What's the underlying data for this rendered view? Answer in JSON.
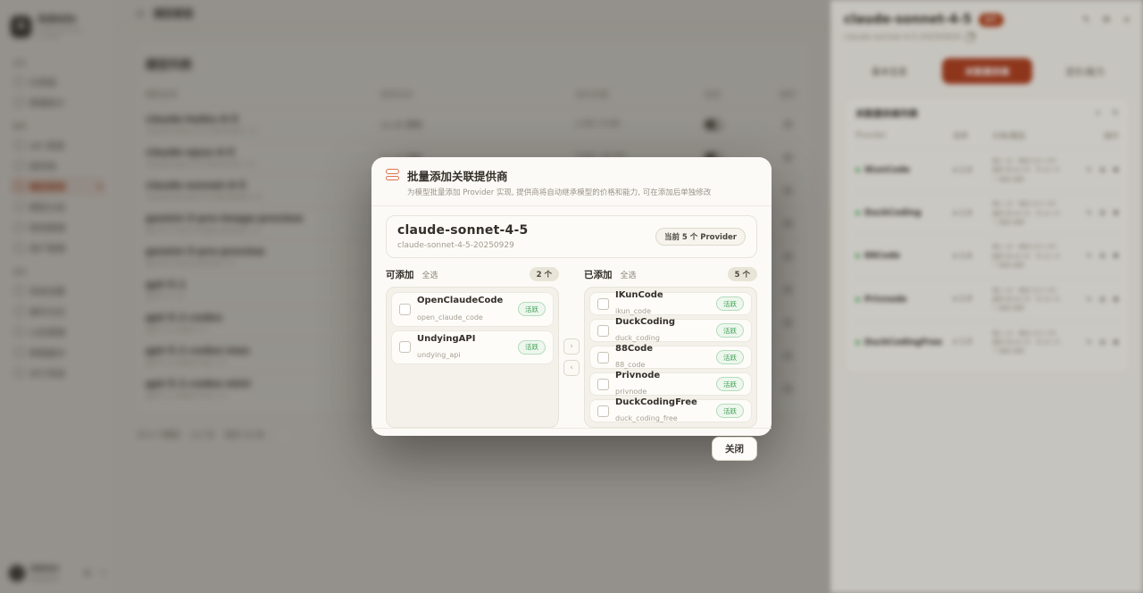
{
  "sidebar": {
    "brand": {
      "logo_letter": "A",
      "name": "Admin",
      "tagline": "model gateway console"
    },
    "sections": [
      {
        "label": "总览",
        "items": [
          {
            "label": "仪表盘"
          },
          {
            "label": "数据统计"
          }
        ]
      },
      {
        "label": "管理",
        "items": [
          {
            "label": "API 渠道"
          },
          {
            "label": "提供商"
          },
          {
            "label": "模型管理"
          },
          {
            "label": "模型分组"
          },
          {
            "label": "密钥管理"
          },
          {
            "label": "用户管理"
          }
        ]
      },
      {
        "label": "系统",
        "items": [
          {
            "label": "系统设置"
          },
          {
            "label": "操作日志"
          },
          {
            "label": "公告管理"
          },
          {
            "label": "数据备份"
          },
          {
            "label": "关于系统"
          }
        ]
      }
    ],
    "user": {
      "name": "Admin",
      "role": "超级管理员"
    }
  },
  "topbar": {
    "menu_icon": "hamburger-icon",
    "title": "模型管理"
  },
  "content": {
    "heading": "模型列表",
    "table": {
      "headers": [
        "模型名称",
        "发布时间",
        "官方价格",
        "状态",
        "操作"
      ],
      "rows": [
        {
          "name": "claude-haiku-4-5",
          "id": "claude-haiku-4-5-20251001 +2",
          "date": "11-25 更新",
          "price": "1.00 / 5.00"
        },
        {
          "name": "claude-opus-4-5",
          "id": "claude-opus-4-5-20251101 +2",
          "date": "11-25 更新",
          "price": "5.00 / 25.00"
        },
        {
          "name": "claude-sonnet-4-5",
          "id": "claude-sonnet-4-5-20250929 +2",
          "date": "11-24 更新",
          "price": "3.00 / 15.00"
        },
        {
          "name": "gemini-3-pro-image-preview",
          "id": "gemini-3-pro-image-preview +1",
          "date": "11-20 更新",
          "price": "2.00 / 12.00"
        },
        {
          "name": "gemini-3-pro-preview",
          "id": "gemini-3-pro-preview +1",
          "date": "11-18 更新",
          "price": "2.00 / 12.00"
        },
        {
          "name": "gpt-5.1",
          "id": "gpt-5.1 +1",
          "date": "11-13 更新",
          "price": "1.25 / 10.00"
        },
        {
          "name": "gpt-5.1-codex",
          "id": "gpt-5.1-codex +1",
          "date": "11-13 更新",
          "price": "1.25 / 10.00"
        },
        {
          "name": "gpt-5.1-codex-max",
          "id": "gpt-5.1-codex-max +1",
          "date": "11-19 更新",
          "price": "1.25 / 10.00"
        },
        {
          "name": "gpt-5.1-codex-mini",
          "id": "gpt-5.1-codex-mini +1",
          "date": "11-19 更新",
          "price": "0.25 / 2.00"
        }
      ]
    },
    "pagination": {
      "summary": "共 9 个模型",
      "page": "1/1 页",
      "per_page": "每页 20 条",
      "next": "›"
    }
  },
  "drawer": {
    "title": "claude-sonnet-4-5",
    "badge": "5个",
    "subtitle": "claude-sonnet-4-5-20250929",
    "tabs": [
      {
        "label": "基本信息"
      },
      {
        "label": "关联提供商"
      },
      {
        "label": "定价/能力"
      }
    ],
    "card": {
      "title": "关联提供商列表",
      "add_icon": "+",
      "refresh_icon": "↻",
      "headers": [
        "Provider",
        "倍率",
        "价格/覆盖",
        "操作"
      ],
      "rows": [
        {
          "name": "IKunCode",
          "ratio": "x 1.0",
          "l1": "输入 $3 · 输出 $15 /1M",
          "l2": "缓存 读 $0.30 · 写 $3.75",
          "l3": "↑ 继承 倍率"
        },
        {
          "name": "DuckCoding",
          "ratio": "x 1.0",
          "l1": "输入 $3 · 输出 $15 /1M",
          "l2": "缓存 读 $0.30 · 写 $3.75",
          "l3": "↑ 继承 倍率"
        },
        {
          "name": "88Code",
          "ratio": "x 1.0",
          "l1": "输入 $3 · 输出 $15 /1M",
          "l2": "缓存 读 $0.30 · 写 $3.75",
          "l3": "↑ 继承 倍率"
        },
        {
          "name": "Privnode",
          "ratio": "x 1.0",
          "l1": "输入 $3 · 输出 $15 /1M",
          "l2": "缓存 读 $0.30 · 写 $3.75",
          "l3": "↑ 继承 倍率"
        },
        {
          "name": "DuckCodingFree",
          "ratio": "x 1.0",
          "l1": "输入 $3 · 输出 $15 /1M",
          "l2": "缓存 读 $0.30 · 写 $3.75",
          "l3": "↑ 继承 倍率"
        }
      ]
    }
  },
  "modal": {
    "title": "批量添加关联提供商",
    "subtitle": "为模型批量添加 Provider 实现, 提供商将自动继承模型的价格和能力, 可在添加后单独修改",
    "model": {
      "name": "claude-sonnet-4-5",
      "id": "claude-sonnet-4-5-20250929",
      "badge": "当前 5 个 Provider"
    },
    "available": {
      "label": "可添加",
      "select_all": "全选",
      "count": "2 个",
      "items": [
        {
          "name": "OpenClaudeCode",
          "id": "open_claude_code",
          "status": "活跃"
        },
        {
          "name": "UndyingAPI",
          "id": "undying_api",
          "status": "活跃"
        }
      ]
    },
    "added": {
      "label": "已添加",
      "select_all": "全选",
      "count": "5 个",
      "items": [
        {
          "name": "IKunCode",
          "id": "ikun_code",
          "status": "活跃"
        },
        {
          "name": "DuckCoding",
          "id": "duck_coding",
          "status": "活跃"
        },
        {
          "name": "88Code",
          "id": "88_code",
          "status": "活跃"
        },
        {
          "name": "Privnode",
          "id": "privnode",
          "status": "活跃"
        },
        {
          "name": "DuckCodingFree",
          "id": "duck_coding_free",
          "status": "活跃"
        }
      ]
    },
    "transfer": {
      "to_added": "›",
      "to_available": "‹"
    },
    "close_label": "关闭"
  }
}
